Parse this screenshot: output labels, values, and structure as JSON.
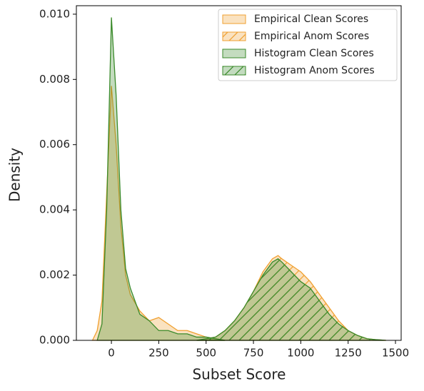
{
  "chart_data": {
    "type": "area",
    "xlabel": "Subset Score",
    "ylabel": "Density",
    "xlim": [
      -185,
      1530
    ],
    "ylim": [
      0,
      0.01026
    ],
    "xticks": [
      0,
      250,
      500,
      750,
      1000,
      1250,
      1500
    ],
    "yticks": [
      {
        "value": 0,
        "label": "0.000"
      },
      {
        "value": 0.002,
        "label": "0.002"
      },
      {
        "value": 0.004,
        "label": "0.004"
      },
      {
        "value": 0.006,
        "label": "0.006"
      },
      {
        "value": 0.008,
        "label": "0.008"
      },
      {
        "value": 0.01,
        "label": "0.010"
      }
    ],
    "legend": "upper right",
    "series": [
      {
        "name": "Empirical Clean Scores",
        "color": "#f0a030",
        "hatch": false,
        "x": [
          -100,
          -75,
          -50,
          -25,
          0,
          25,
          50,
          75,
          100,
          150,
          200,
          250,
          300,
          350,
          400,
          450,
          500,
          550,
          600
        ],
        "values": [
          0,
          0.0003,
          0.0012,
          0.0045,
          0.0078,
          0.006,
          0.0035,
          0.002,
          0.0014,
          0.0009,
          0.0006,
          0.0007,
          0.0005,
          0.0003,
          0.0003,
          0.0002,
          0.0001,
          5e-05,
          0
        ]
      },
      {
        "name": "Empirical Anom Scores",
        "color": "#f0a030",
        "hatch": true,
        "x": [
          450,
          500,
          550,
          600,
          650,
          700,
          750,
          800,
          850,
          880,
          900,
          950,
          1000,
          1050,
          1100,
          1150,
          1200,
          1250,
          1300,
          1350,
          1400,
          1450
        ],
        "values": [
          0,
          5e-05,
          0.0001,
          0.0003,
          0.0006,
          0.001,
          0.0015,
          0.0021,
          0.0025,
          0.0026,
          0.0025,
          0.0023,
          0.0021,
          0.0018,
          0.0014,
          0.001,
          0.0006,
          0.0003,
          0.00015,
          5e-05,
          2e-05,
          0
        ]
      },
      {
        "name": "Histogram Clean Scores",
        "color": "#3a8a2a",
        "hatch": false,
        "x": [
          -75,
          -50,
          -25,
          0,
          25,
          50,
          75,
          100,
          150,
          200,
          250,
          300,
          350,
          400,
          450,
          500,
          550,
          600
        ],
        "values": [
          0,
          0.0005,
          0.004,
          0.0099,
          0.0075,
          0.004,
          0.0022,
          0.0016,
          0.0008,
          0.0006,
          0.0003,
          0.0003,
          0.0002,
          0.0002,
          0.0001,
          0.0001,
          5e-05,
          0
        ]
      },
      {
        "name": "Histogram Anom Scores",
        "color": "#3a8a2a",
        "hatch": true,
        "x": [
          450,
          500,
          550,
          600,
          650,
          700,
          750,
          800,
          850,
          880,
          900,
          950,
          1000,
          1050,
          1100,
          1150,
          1200,
          1250,
          1300,
          1350,
          1400,
          1450
        ],
        "values": [
          0,
          5e-05,
          0.0001,
          0.0003,
          0.0006,
          0.001,
          0.0015,
          0.002,
          0.0024,
          0.0025,
          0.0024,
          0.0021,
          0.0018,
          0.0016,
          0.0012,
          0.0008,
          0.0005,
          0.0003,
          0.00015,
          5e-05,
          2e-05,
          0
        ]
      }
    ]
  }
}
